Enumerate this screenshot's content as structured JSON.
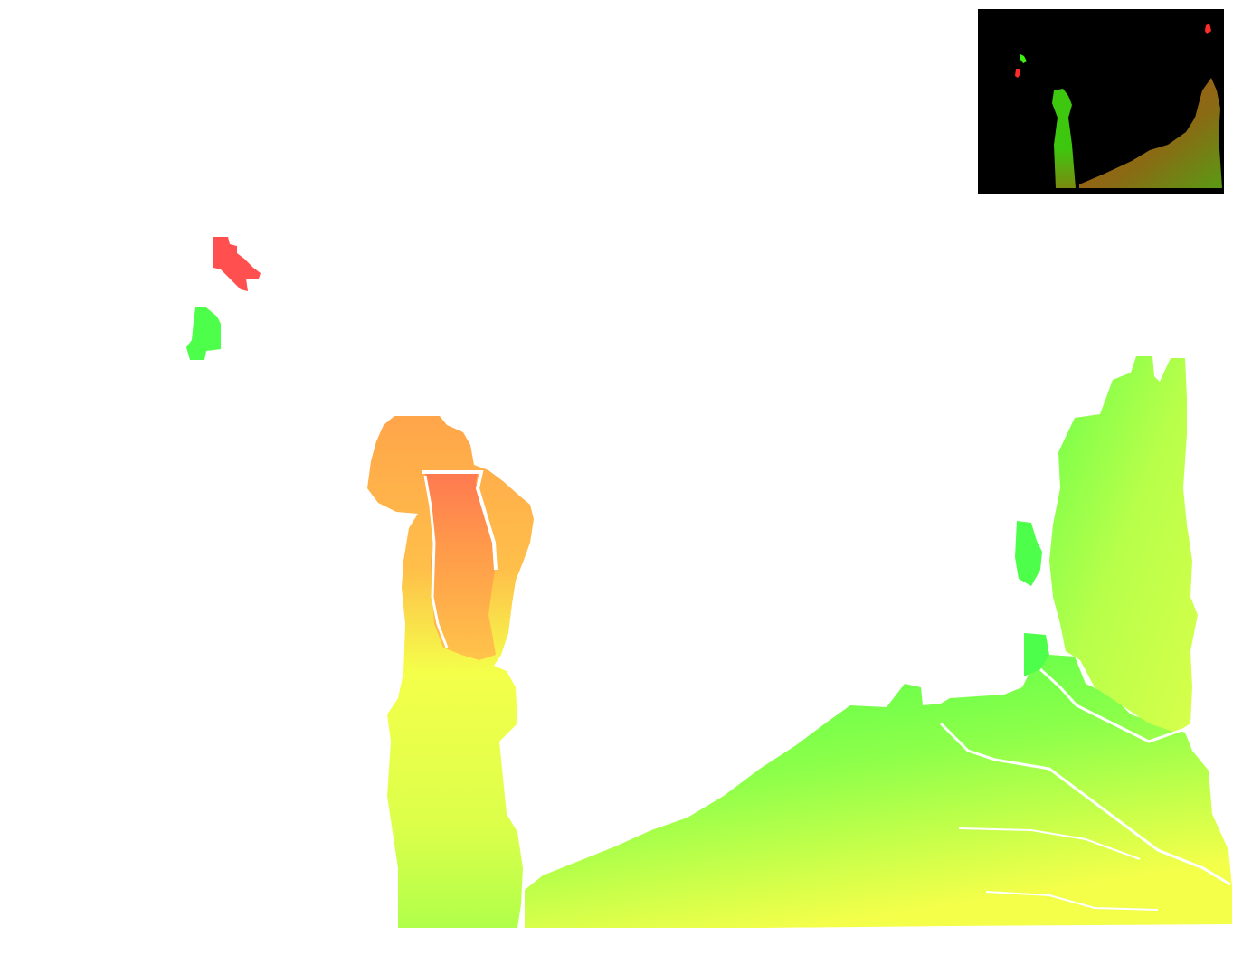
{
  "view": {
    "background": "#ffffff",
    "inset_background": "#000000"
  },
  "palette": {
    "red": "#ff4f4f",
    "orange": "#ffa54a",
    "red_orange": "#ff7a50",
    "yellow": "#f4ff4a",
    "yellow_green": "#c9ff4a",
    "green": "#4dff4a",
    "inset_green": "#3ec70f",
    "inset_olive": "#7a8a10",
    "inset_brown": "#b8501a"
  }
}
